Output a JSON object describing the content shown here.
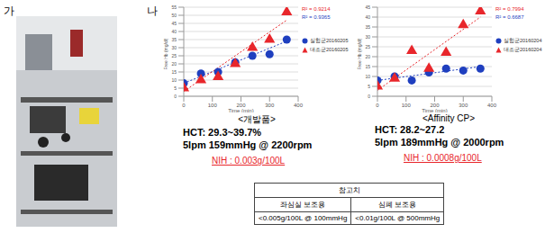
{
  "labels": {
    "a": "가",
    "b": "나"
  },
  "chart_data": [
    {
      "type": "scatter",
      "x_label": "Time (min)",
      "y_label": "Free Hb (mg/dl)",
      "xlim": [
        0,
        400
      ],
      "xticks": [
        0,
        100,
        200,
        300,
        400
      ],
      "ylim": [
        0,
        55
      ],
      "yticks": [
        0,
        5,
        10,
        15,
        20,
        25,
        30,
        35,
        40,
        45,
        50,
        55
      ],
      "grid": true,
      "legend": "right",
      "series": [
        {
          "name": "실험군20160205",
          "color": "#1f3fbf",
          "marker": "circle",
          "x": [
            0,
            60,
            120,
            180,
            240,
            300,
            360
          ],
          "values": [
            8,
            14,
            15,
            21,
            25,
            26,
            35
          ],
          "trend": {
            "x": [
              0,
              360
            ],
            "values": [
              8,
              34
            ],
            "line_style": "dotted"
          }
        },
        {
          "name": "대조군20160205",
          "color": "#e8262b",
          "marker": "triangle",
          "x": [
            0,
            60,
            120,
            180,
            240,
            300,
            360
          ],
          "values": [
            5,
            10,
            12,
            20,
            30,
            35,
            52
          ],
          "trend": {
            "x": [
              0,
              360
            ],
            "values": [
              3,
              47
            ],
            "line_style": "dotted"
          }
        }
      ],
      "annotations": [
        {
          "text": "R² = 0.9214",
          "color": "#e8262b"
        },
        {
          "text": "R² = 0.9365",
          "color": "#1f3fbf"
        }
      ]
    },
    {
      "type": "scatter",
      "x_label": "Time (min)",
      "y_label": "Free Hb (mg/dl)",
      "xlim": [
        0,
        400
      ],
      "xticks": [
        0,
        100,
        200,
        300,
        400
      ],
      "ylim": [
        0,
        45
      ],
      "yticks": [
        0,
        5,
        10,
        15,
        20,
        25,
        30,
        35,
        40,
        45
      ],
      "grid": true,
      "legend": "right",
      "series": [
        {
          "name": "실험군20160204",
          "color": "#1f3fbf",
          "marker": "circle",
          "x": [
            0,
            60,
            120,
            180,
            240,
            300,
            360
          ],
          "values": [
            8,
            10,
            8,
            12,
            14,
            13,
            14
          ],
          "trend": {
            "x": [
              0,
              360
            ],
            "values": [
              8,
              15
            ],
            "line_style": "dotted"
          }
        },
        {
          "name": "대조군20160204",
          "color": "#e8262b",
          "marker": "triangle",
          "x": [
            0,
            60,
            120,
            180,
            240,
            300,
            360
          ],
          "values": [
            5,
            9,
            23,
            14,
            22,
            36,
            43
          ],
          "trend": {
            "x": [
              0,
              360
            ],
            "values": [
              3,
              40
            ],
            "line_style": "dotted"
          }
        }
      ],
      "annotations": [
        {
          "text": "R² = 0.7994",
          "color": "#e8262b"
        },
        {
          "text": "R² = 0.6687",
          "color": "#1f3fbf"
        }
      ]
    }
  ],
  "captions": [
    {
      "name": "<개발품>",
      "lines": [
        "HCT: 29.3~39.7%",
        "5lpm 159mmHg @ 2200rpm"
      ],
      "nih": "NIH : 0.003g/100L"
    },
    {
      "name": "<Affinity CP>",
      "lines": [
        "HCT: 28.2~27.2",
        "5lpm 189mmHg @ 2000rpm"
      ],
      "nih": "NIH : 0.0008g/100L"
    }
  ],
  "table": {
    "title": "참고치",
    "header": [
      "좌심실 보조용",
      "심폐 보조용"
    ],
    "row": [
      "<0.005g/100L @ 100mmHg",
      "<0.01g/100L @ 500mmHg"
    ]
  }
}
